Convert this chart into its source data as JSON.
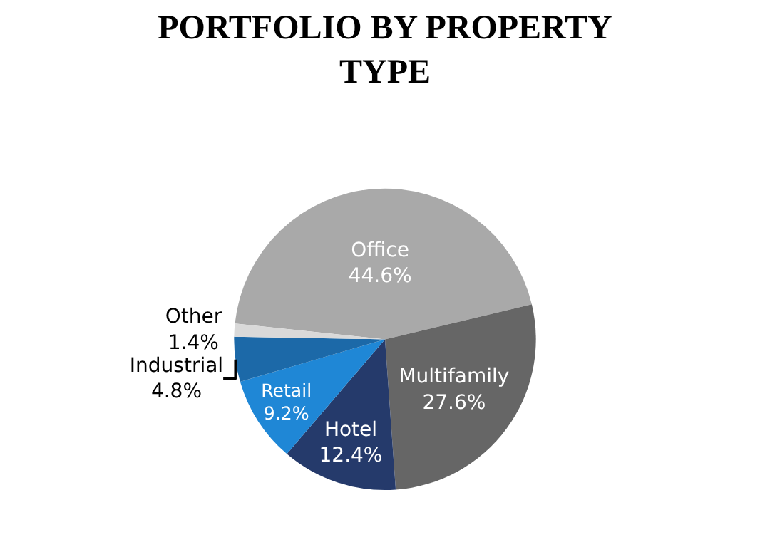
{
  "chart_data": {
    "type": "pie",
    "title": "PORTFOLIO BY PROPERTY TYPE",
    "categories": [
      "Office",
      "Multifamily",
      "Hotel",
      "Retail",
      "Industrial",
      "Other"
    ],
    "values": [
      44.6,
      27.6,
      12.4,
      9.2,
      4.8,
      1.4
    ],
    "value_labels": [
      "44.6%",
      "27.6%",
      "12.4%",
      "9.2%",
      "4.8%",
      "1.4%"
    ],
    "colors": [
      "#a9a9a9",
      "#666666",
      "#253a6b",
      "#1f87d6",
      "#1c69a8",
      "#d9d9d9"
    ],
    "legend": false
  }
}
